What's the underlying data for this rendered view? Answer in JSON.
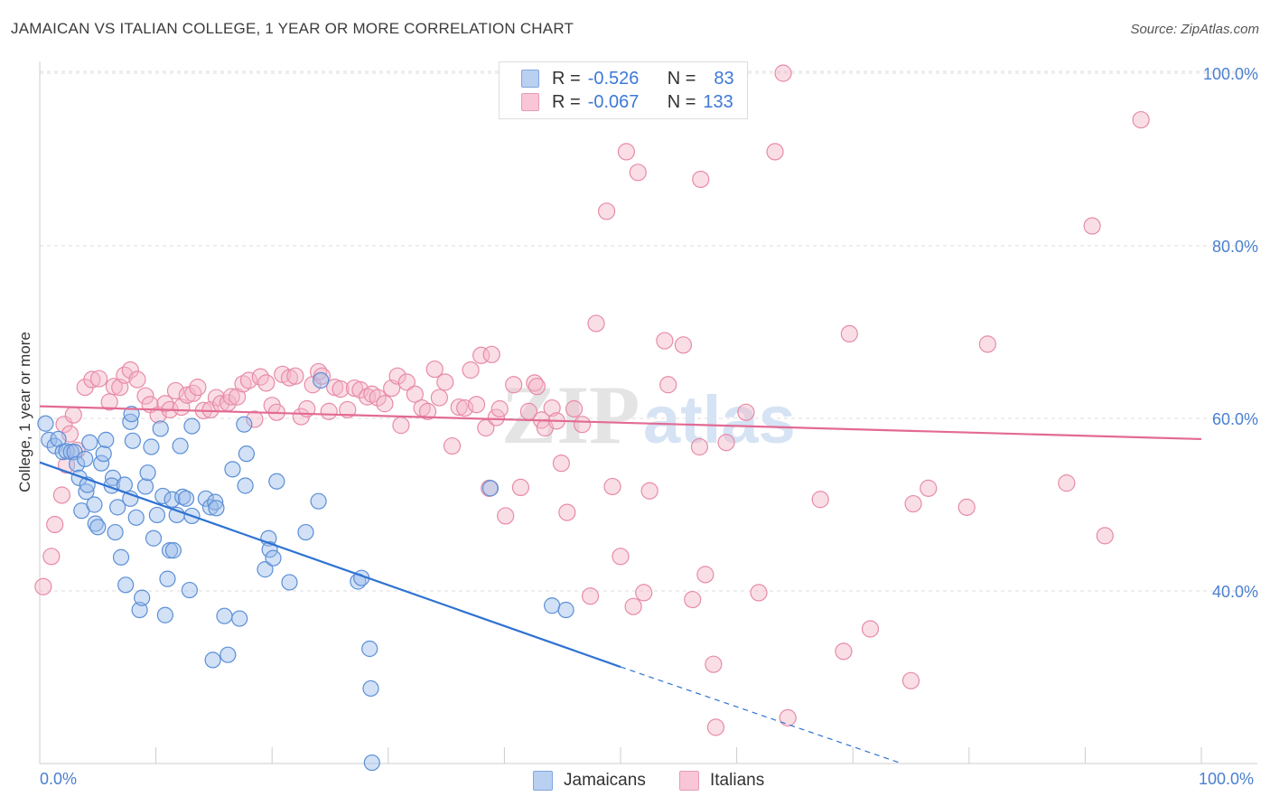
{
  "title": "JAMAICAN VS ITALIAN COLLEGE, 1 YEAR OR MORE CORRELATION CHART",
  "source": "Source: ZipAtlas.com",
  "watermark": {
    "zip": "ZIP",
    "atlas": "atlas"
  },
  "legend_top": {
    "jamaicans": {
      "r_label": "R =",
      "r_value": "-0.526",
      "n_label": "N =",
      "n_value": "83"
    },
    "italians": {
      "r_label": "R =",
      "r_value": "-0.067",
      "n_label": "N =",
      "n_value": "133"
    }
  },
  "legend_bottom": {
    "jamaicans": "Jamaicans",
    "italians": "Italians"
  },
  "colors": {
    "blue_fill": "#9bbcea",
    "blue_stroke": "#5b8fd6",
    "blue_line": "#2e72d2",
    "pink_fill": "#f5b5c8",
    "pink_stroke": "#e78ba8",
    "pink_line": "#e26a93",
    "tick_label": "#4a7fd0"
  },
  "chart_data": {
    "type": "scatter",
    "title": "JAMAICAN VS ITALIAN COLLEGE, 1 YEAR OR MORE CORRELATION CHART",
    "xlabel": "",
    "ylabel": "College, 1 year or more",
    "xlim": [
      0,
      100
    ],
    "ylim": [
      20,
      101
    ],
    "x_tick_labels": {
      "left": "0.0%",
      "right": "100.0%"
    },
    "y_ticks": [
      {
        "value": 40,
        "label": "40.0%"
      },
      {
        "value": 60,
        "label": "60.0%"
      },
      {
        "value": 80,
        "label": "80.0%"
      },
      {
        "value": 100,
        "label": "100.0%"
      }
    ],
    "series": [
      {
        "name": "Jamaicans",
        "r": -0.526,
        "n": 83,
        "trend": {
          "x0": 0,
          "y0": 54.9,
          "x1": 50,
          "y1": 31.2,
          "dashed_to_x": 74,
          "dashed_to_y": 20.1
        },
        "points": [
          [
            0.5,
            59.4
          ],
          [
            0.8,
            57.5
          ],
          [
            1.3,
            56.8
          ],
          [
            1.6,
            57.6
          ],
          [
            2,
            56.1
          ],
          [
            2.3,
            56.2
          ],
          [
            2.7,
            56.1
          ],
          [
            3,
            56.1
          ],
          [
            3.2,
            54.7
          ],
          [
            3.4,
            53.1
          ],
          [
            3.6,
            49.3
          ],
          [
            3.9,
            55.3
          ],
          [
            4,
            51.5
          ],
          [
            4.1,
            52.3
          ],
          [
            4.3,
            57.2
          ],
          [
            4.7,
            50
          ],
          [
            4.8,
            47.8
          ],
          [
            5,
            47.4
          ],
          [
            5.3,
            54.8
          ],
          [
            5.5,
            55.9
          ],
          [
            5.7,
            57.5
          ],
          [
            6.3,
            53.1
          ],
          [
            6.2,
            52.2
          ],
          [
            6.5,
            46.8
          ],
          [
            6.7,
            49.7
          ],
          [
            7,
            43.9
          ],
          [
            7.3,
            52.3
          ],
          [
            7.4,
            40.7
          ],
          [
            7.8,
            59.6
          ],
          [
            8,
            57.4
          ],
          [
            7.9,
            60.5
          ],
          [
            8.3,
            48.5
          ],
          [
            8.6,
            37.8
          ],
          [
            8.8,
            39.2
          ],
          [
            9.1,
            52.1
          ],
          [
            9.3,
            53.7
          ],
          [
            9.6,
            56.7
          ],
          [
            9.8,
            46.1
          ],
          [
            10.1,
            48.8
          ],
          [
            10.4,
            58.8
          ],
          [
            10.6,
            51
          ],
          [
            10.8,
            37.2
          ],
          [
            11,
            41.4
          ],
          [
            11.2,
            44.7
          ],
          [
            11.4,
            50.6
          ],
          [
            11.8,
            48.8
          ],
          [
            12.1,
            56.8
          ],
          [
            12.3,
            50.9
          ],
          [
            12.6,
            50.7
          ],
          [
            12.9,
            40.1
          ],
          [
            13.1,
            59.1
          ],
          [
            14.3,
            50.7
          ],
          [
            14.7,
            49.7
          ],
          [
            14.9,
            32
          ],
          [
            15.1,
            50.3
          ],
          [
            15.2,
            49.6
          ],
          [
            15.9,
            37.1
          ],
          [
            16.2,
            32.6
          ],
          [
            16.6,
            54.1
          ],
          [
            17.2,
            36.8
          ],
          [
            17.6,
            59.3
          ],
          [
            17.7,
            52.2
          ],
          [
            17.8,
            55.9
          ],
          [
            19.4,
            42.5
          ],
          [
            19.7,
            46.1
          ],
          [
            19.8,
            44.8
          ],
          [
            20.1,
            43.8
          ],
          [
            20.4,
            52.7
          ],
          [
            21.5,
            41
          ],
          [
            22.9,
            46.8
          ],
          [
            24,
            50.4
          ],
          [
            24.2,
            64.4
          ],
          [
            27.4,
            41.1
          ],
          [
            27.7,
            41.5
          ],
          [
            28.4,
            33.3
          ],
          [
            28.5,
            28.7
          ],
          [
            28.6,
            20.1
          ],
          [
            44.1,
            38.3
          ],
          [
            38.8,
            51.9
          ],
          [
            45.3,
            37.8
          ],
          [
            11.5,
            44.7
          ],
          [
            13.1,
            48.7
          ],
          [
            7.8,
            50.7
          ]
        ]
      },
      {
        "name": "Italians",
        "r": -0.067,
        "n": 133,
        "trend": {
          "x0": 0,
          "y0": 61.4,
          "x1": 100,
          "y1": 57.6
        },
        "points": [
          [
            0.3,
            40.5
          ],
          [
            1,
            44
          ],
          [
            1.3,
            47.7
          ],
          [
            1.9,
            51.1
          ],
          [
            2.1,
            59.3
          ],
          [
            2.3,
            54.6
          ],
          [
            2.6,
            58.2
          ],
          [
            2.9,
            60.4
          ],
          [
            3.2,
            56.3
          ],
          [
            3.9,
            63.6
          ],
          [
            4.5,
            64.5
          ],
          [
            5.1,
            64.6
          ],
          [
            6,
            61.9
          ],
          [
            6.4,
            63.7
          ],
          [
            6.9,
            63.6
          ],
          [
            7.3,
            65
          ],
          [
            7.8,
            65.6
          ],
          [
            8.4,
            64.5
          ],
          [
            9.1,
            62.6
          ],
          [
            9.5,
            61.6
          ],
          [
            10.2,
            60.4
          ],
          [
            10.8,
            61.7
          ],
          [
            11.2,
            61
          ],
          [
            11.7,
            63.2
          ],
          [
            12.2,
            61.3
          ],
          [
            12.7,
            62.7
          ],
          [
            13.2,
            62.9
          ],
          [
            13.6,
            63.6
          ],
          [
            14.1,
            60.9
          ],
          [
            14.7,
            61
          ],
          [
            15.2,
            62.4
          ],
          [
            15.6,
            61.7
          ],
          [
            16.2,
            61.8
          ],
          [
            16.5,
            62.5
          ],
          [
            17,
            62.5
          ],
          [
            17.5,
            64
          ],
          [
            18,
            64.4
          ],
          [
            18.5,
            59.9
          ],
          [
            19,
            64.8
          ],
          [
            19.5,
            64.1
          ],
          [
            20,
            61.5
          ],
          [
            20.4,
            60.7
          ],
          [
            20.9,
            65.1
          ],
          [
            21.5,
            64.7
          ],
          [
            22,
            64.9
          ],
          [
            22.5,
            60.2
          ],
          [
            23,
            61.1
          ],
          [
            23.5,
            63.9
          ],
          [
            24,
            65.4
          ],
          [
            24.3,
            64.9
          ],
          [
            24.9,
            60.8
          ],
          [
            25.4,
            63.6
          ],
          [
            25.9,
            63.4
          ],
          [
            26.5,
            61
          ],
          [
            27.1,
            63.5
          ],
          [
            27.6,
            63.3
          ],
          [
            28.2,
            62.5
          ],
          [
            28.6,
            62.8
          ],
          [
            29.1,
            62.4
          ],
          [
            29.7,
            61.7
          ],
          [
            30.3,
            63.5
          ],
          [
            30.8,
            64.9
          ],
          [
            31.1,
            59.2
          ],
          [
            31.6,
            64.2
          ],
          [
            32.3,
            62.8
          ],
          [
            32.9,
            61.2
          ],
          [
            33.4,
            60.8
          ],
          [
            34,
            65.7
          ],
          [
            34.4,
            62.4
          ],
          [
            34.9,
            64.2
          ],
          [
            35.5,
            56.8
          ],
          [
            36.1,
            61.3
          ],
          [
            36.6,
            61.2
          ],
          [
            37.1,
            65.6
          ],
          [
            37.6,
            61.6
          ],
          [
            38,
            67.3
          ],
          [
            38.4,
            58.9
          ],
          [
            38.9,
            67.4
          ],
          [
            39.3,
            60.1
          ],
          [
            39.6,
            61.1
          ],
          [
            40.1,
            48.7
          ],
          [
            40.8,
            63.9
          ],
          [
            41.4,
            52
          ],
          [
            42.1,
            60.8
          ],
          [
            42.6,
            64.1
          ],
          [
            43.2,
            59.8
          ],
          [
            43.5,
            58.9
          ],
          [
            44.1,
            61.2
          ],
          [
            44.5,
            59.7
          ],
          [
            44.9,
            54.8
          ],
          [
            45.4,
            49.1
          ],
          [
            46,
            61.1
          ],
          [
            46.7,
            59.3
          ],
          [
            47.4,
            39.4
          ],
          [
            47.9,
            71
          ],
          [
            48.8,
            84
          ],
          [
            49.3,
            52.1
          ],
          [
            50,
            44
          ],
          [
            50.5,
            90.9
          ],
          [
            51.1,
            38.2
          ],
          [
            51.5,
            88.5
          ],
          [
            52,
            39.8
          ],
          [
            52.5,
            51.6
          ],
          [
            53.8,
            69
          ],
          [
            54.1,
            63.9
          ],
          [
            55.4,
            68.5
          ],
          [
            56.2,
            39
          ],
          [
            56.8,
            56.7
          ],
          [
            56.9,
            87.7
          ],
          [
            57.3,
            41.9
          ],
          [
            58,
            31.5
          ],
          [
            58.2,
            24.2
          ],
          [
            59.1,
            57.2
          ],
          [
            60.8,
            60.7
          ],
          [
            61.9,
            39.8
          ],
          [
            63.3,
            90.9
          ],
          [
            64,
            100
          ],
          [
            64.4,
            25.3
          ],
          [
            67.2,
            50.6
          ],
          [
            69.2,
            33
          ],
          [
            69.7,
            69.8
          ],
          [
            71.5,
            35.6
          ],
          [
            75,
            29.6
          ],
          [
            75.2,
            50.1
          ],
          [
            76.5,
            51.9
          ],
          [
            79.8,
            49.7
          ],
          [
            81.6,
            68.6
          ],
          [
            88.4,
            52.5
          ],
          [
            90.6,
            82.3
          ],
          [
            91.7,
            46.4
          ],
          [
            94.8,
            94.6
          ],
          [
            38.7,
            51.9
          ],
          [
            42.8,
            63.7
          ]
        ]
      }
    ]
  }
}
